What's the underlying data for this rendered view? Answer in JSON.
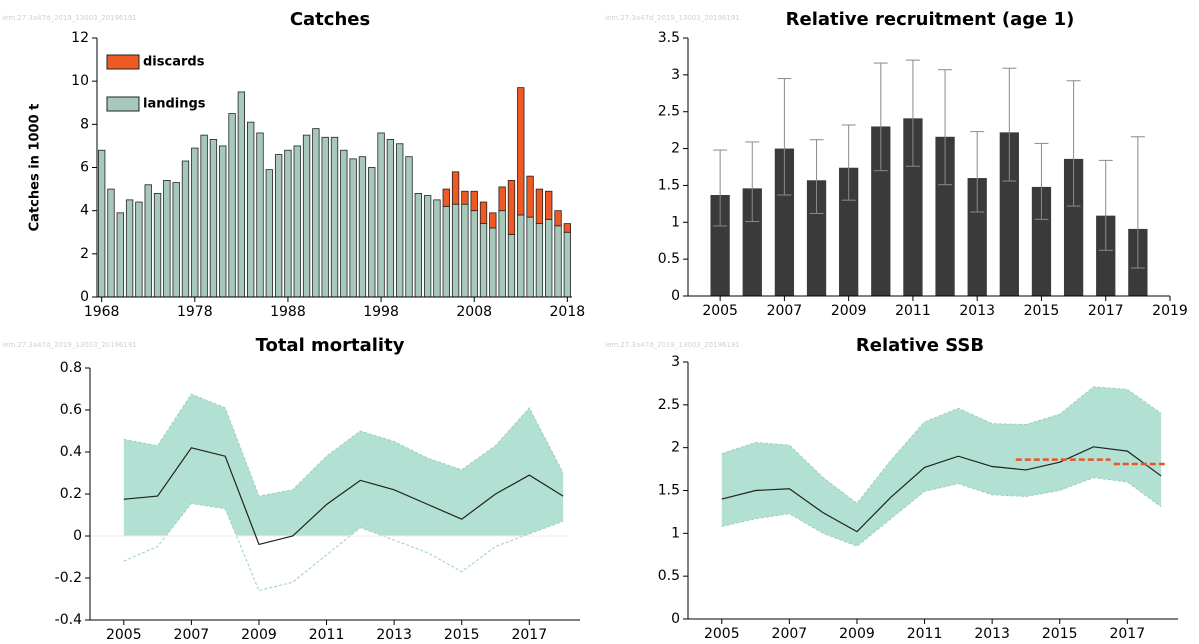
{
  "chart_data": [
    {
      "type": "bar",
      "title": "Catches",
      "watermark": "iem.27.3a47d_2019_13003_20196191",
      "y_label": "Catches in 1000 t",
      "x": [
        1968,
        1969,
        1970,
        1971,
        1972,
        1973,
        1974,
        1975,
        1976,
        1977,
        1978,
        1979,
        1980,
        1981,
        1982,
        1983,
        1984,
        1985,
        1986,
        1987,
        1988,
        1989,
        1990,
        1991,
        1992,
        1993,
        1994,
        1995,
        1996,
        1997,
        1998,
        1999,
        2000,
        2001,
        2002,
        2003,
        2004,
        2005,
        2006,
        2007,
        2008,
        2009,
        2010,
        2011,
        2012,
        2013,
        2014,
        2015,
        2016,
        2017,
        2018
      ],
      "series": [
        {
          "name": "landings",
          "color": "#a6c9bc",
          "values": [
            6.8,
            5.0,
            3.9,
            4.5,
            4.4,
            5.2,
            4.8,
            5.4,
            5.3,
            6.3,
            6.9,
            7.5,
            7.3,
            7.0,
            8.5,
            9.5,
            8.1,
            7.6,
            5.9,
            6.6,
            6.8,
            7.0,
            7.5,
            7.8,
            7.4,
            7.4,
            6.8,
            6.4,
            6.5,
            6.0,
            7.6,
            7.3,
            7.1,
            6.5,
            4.8,
            4.7,
            4.5,
            4.2,
            4.3,
            4.3,
            4.0,
            3.4,
            3.2,
            4.0,
            2.9,
            3.8,
            3.7,
            3.4,
            3.6,
            3.3,
            3.0
          ]
        },
        {
          "name": "discards",
          "color": "#ee5a24",
          "values": [
            null,
            null,
            null,
            null,
            null,
            null,
            null,
            null,
            null,
            null,
            null,
            null,
            null,
            null,
            null,
            null,
            null,
            null,
            null,
            null,
            null,
            null,
            null,
            null,
            null,
            null,
            null,
            null,
            null,
            null,
            null,
            null,
            null,
            null,
            null,
            null,
            null,
            0.8,
            1.5,
            0.6,
            0.9,
            1.0,
            0.7,
            1.1,
            2.5,
            5.9,
            1.9,
            1.6,
            1.3,
            0.7,
            0.4
          ]
        }
      ],
      "xlim": [
        1967.5,
        2018.5
      ],
      "xticks": [
        1968,
        1978,
        1988,
        1998,
        2008,
        2018
      ],
      "ylim": [
        0,
        12
      ],
      "yticks": [
        0,
        2,
        4,
        6,
        8,
        10,
        12
      ],
      "legend": "upper left"
    },
    {
      "type": "bar",
      "title": "Relative recruitment (age 1)",
      "watermark": "iem.27.3a47d_2019_13003_20196191",
      "x": [
        2005,
        2006,
        2007,
        2008,
        2009,
        2010,
        2011,
        2012,
        2013,
        2014,
        2015,
        2016,
        2017,
        2018
      ],
      "values": [
        1.37,
        1.46,
        2.0,
        1.57,
        1.74,
        2.3,
        2.41,
        2.16,
        1.6,
        2.22,
        1.48,
        1.86,
        1.09,
        0.91
      ],
      "low": [
        0.95,
        1.01,
        1.37,
        1.12,
        1.3,
        1.7,
        1.76,
        1.51,
        1.14,
        1.56,
        1.04,
        1.22,
        0.62,
        0.38
      ],
      "high": [
        1.98,
        2.09,
        2.95,
        2.12,
        2.32,
        3.16,
        3.2,
        3.07,
        2.23,
        3.09,
        2.07,
        2.92,
        1.84,
        2.16
      ],
      "color": "#3a3a3a",
      "xlim": [
        2004,
        2019
      ],
      "xticks": [
        2005,
        2007,
        2009,
        2011,
        2013,
        2015,
        2017,
        2019
      ],
      "ylim": [
        0,
        3.5
      ],
      "yticks": [
        0,
        0.5,
        1,
        1.5,
        2,
        2.5,
        3,
        3.5
      ]
    },
    {
      "type": "line",
      "title": "Total mortality",
      "watermark": "iem.27.3a47d_2019_13003_20196191",
      "x": [
        2005,
        2006,
        2007,
        2008,
        2009,
        2010,
        2011,
        2012,
        2013,
        2014,
        2015,
        2016,
        2017,
        2018
      ],
      "values": [
        0.175,
        0.19,
        0.42,
        0.38,
        -0.04,
        0.0,
        0.15,
        0.265,
        0.22,
        0.15,
        0.08,
        0.2,
        0.29,
        0.19
      ],
      "low": [
        -0.12,
        -0.05,
        0.155,
        0.13,
        -0.26,
        -0.22,
        -0.09,
        0.04,
        -0.02,
        -0.08,
        -0.17,
        -0.05,
        0.01,
        0.07
      ],
      "high": [
        0.46,
        0.43,
        0.675,
        0.61,
        0.19,
        0.22,
        0.38,
        0.5,
        0.45,
        0.37,
        0.315,
        0.43,
        0.61,
        0.3
      ],
      "color": "#222222",
      "band_color": "#b2e0d2",
      "xlim": [
        2004,
        2018.5
      ],
      "xticks": [
        2005,
        2007,
        2009,
        2011,
        2013,
        2015,
        2017
      ],
      "ylim": [
        -0.4,
        0.8
      ],
      "yticks": [
        -0.4,
        -0.2,
        0,
        0.2,
        0.4,
        0.6,
        0.8
      ]
    },
    {
      "type": "line",
      "title": "Relative SSB",
      "watermark": "iem.27.3a47d_2019_13003_20196191",
      "x": [
        2005,
        2006,
        2007,
        2008,
        2009,
        2010,
        2011,
        2012,
        2013,
        2014,
        2015,
        2016,
        2017,
        2018
      ],
      "values": [
        1.4,
        1.5,
        1.52,
        1.24,
        1.02,
        1.42,
        1.77,
        1.9,
        1.78,
        1.74,
        1.83,
        2.01,
        1.96,
        1.67
      ],
      "low": [
        1.08,
        1.17,
        1.23,
        1.0,
        0.85,
        1.17,
        1.49,
        1.58,
        1.45,
        1.43,
        1.5,
        1.65,
        1.6,
        1.31
      ],
      "high": [
        1.93,
        2.06,
        2.03,
        1.65,
        1.35,
        1.85,
        2.3,
        2.46,
        2.28,
        2.27,
        2.39,
        2.71,
        2.68,
        2.4
      ],
      "color": "#222222",
      "band_color": "#b2e0d2",
      "reference_lines": [
        {
          "x": [
            2013.7,
            2016.5
          ],
          "value": 1.86
        },
        {
          "x": [
            2016.6,
            2018.2
          ],
          "value": 1.81
        }
      ],
      "reference_color": "#e8542a",
      "xlim": [
        2004,
        2018.5
      ],
      "xticks": [
        2005,
        2007,
        2009,
        2011,
        2013,
        2015,
        2017
      ],
      "ylim": [
        0,
        3
      ],
      "yticks": [
        0,
        0.5,
        1,
        1.5,
        2,
        2.5,
        3
      ]
    }
  ]
}
